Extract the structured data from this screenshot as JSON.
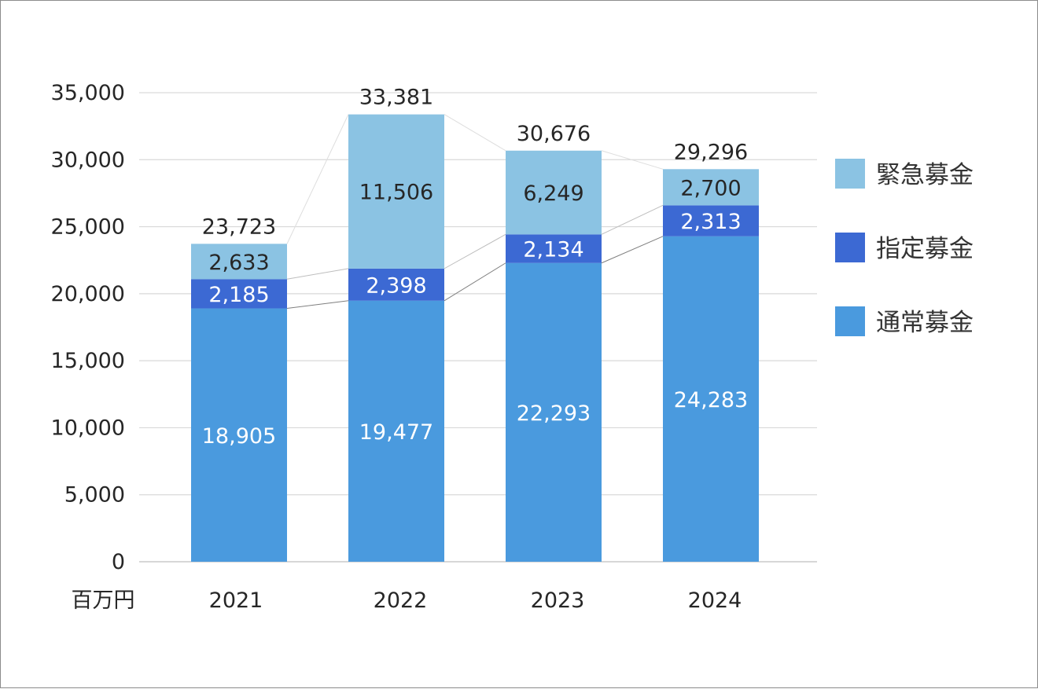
{
  "chart_data": {
    "type": "bar",
    "stacked": true,
    "categories": [
      "2021",
      "2022",
      "2023",
      "2024"
    ],
    "series": [
      {
        "name": "通常募金",
        "values": [
          18905,
          19477,
          22293,
          24283
        ],
        "color": "#4a9ade",
        "label_color": "#ffffff"
      },
      {
        "name": "指定募金",
        "values": [
          2185,
          2398,
          2134,
          2313
        ],
        "color": "#3c69d3",
        "label_color": "#ffffff"
      },
      {
        "name": "緊急募金",
        "values": [
          2633,
          11506,
          6249,
          2700
        ],
        "color": "#8bc3e3",
        "label_color": "#262626"
      }
    ],
    "value_labels": [
      [
        "18,905",
        "19,477",
        "22,293",
        "24,283"
      ],
      [
        "2,185",
        "2,398",
        "2,134",
        "2,313"
      ],
      [
        "2,633",
        "11,506",
        "6,249",
        "2,700"
      ]
    ],
    "totals": [
      23723,
      33381,
      30676,
      29296
    ],
    "total_labels": [
      "23,723",
      "33,381",
      "30,676",
      "29,296"
    ],
    "ylim": [
      0,
      35000
    ],
    "yticks": [
      0,
      5000,
      10000,
      15000,
      20000,
      25000,
      30000,
      35000
    ],
    "ytick_labels": [
      "0",
      "5,000",
      "10,000",
      "15,000",
      "20,000",
      "25,000",
      "30,000",
      "35,000"
    ],
    "unit_label": "百万円",
    "grid": true,
    "legend_position": "right",
    "legend_order": [
      "緊急募金",
      "指定募金",
      "通常募金"
    ],
    "series_lines": true,
    "title": "",
    "xlabel": "",
    "ylabel": ""
  }
}
